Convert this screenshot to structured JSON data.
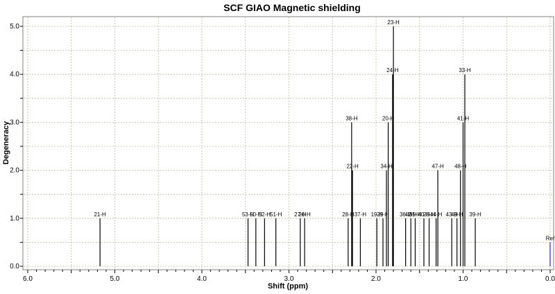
{
  "chart_data": {
    "type": "bar",
    "title": "SCF GIAO Magnetic shielding",
    "xlabel": "Shift (ppm)",
    "ylabel": "Degeneracy",
    "xlim": [
      6.0,
      0.0
    ],
    "ylim": [
      0.0,
      5.2
    ],
    "x_reversed": true,
    "grid": true,
    "xticks": [
      6.0,
      5.0,
      4.0,
      3.0,
      2.0,
      1.0,
      0.0
    ],
    "xtick_labels": [
      "6.0",
      "5.0",
      "4.0",
      "3.0",
      "2.0",
      "1.0",
      "0.0"
    ],
    "yticks": [
      0.0,
      1.0,
      2.0,
      3.0,
      4.0,
      5.0
    ],
    "ytick_labels": [
      "0.0",
      "1.0",
      "2.0",
      "3.0",
      "4.0",
      "5.0"
    ],
    "peaks": [
      {
        "label": "21-H",
        "x": 5.17,
        "y": 1
      },
      {
        "label": "53-H",
        "x": 3.47,
        "y": 1
      },
      {
        "label": "50-H",
        "x": 3.38,
        "y": 1
      },
      {
        "label": "52-H",
        "x": 3.28,
        "y": 1
      },
      {
        "label": "51-H",
        "x": 3.15,
        "y": 1
      },
      {
        "label": "27-H",
        "x": 2.87,
        "y": 1
      },
      {
        "label": "26-H",
        "x": 2.82,
        "y": 1
      },
      {
        "label": "28-H",
        "x": 2.32,
        "y": 1
      },
      {
        "label": "38-H",
        "x": 2.28,
        "y": 3
      },
      {
        "label": "22-H",
        "x": 2.27,
        "y": 2
      },
      {
        "label": "37-H",
        "x": 2.18,
        "y": 1
      },
      {
        "label": "19-H",
        "x": 1.99,
        "y": 1
      },
      {
        "label": "29-H",
        "x": 1.92,
        "y": 1
      },
      {
        "label": "34-H",
        "x": 1.88,
        "y": 2
      },
      {
        "label": "20-H",
        "x": 1.86,
        "y": 3
      },
      {
        "label": "24-H",
        "x": 1.81,
        "y": 4
      },
      {
        "label": "23-H",
        "x": 1.8,
        "y": 5
      },
      {
        "label": "36-H",
        "x": 1.66,
        "y": 1
      },
      {
        "label": "42-H",
        "x": 1.6,
        "y": 1
      },
      {
        "label": "35-H",
        "x": 1.55,
        "y": 1
      },
      {
        "label": "40-H",
        "x": 1.45,
        "y": 1
      },
      {
        "label": "26-H",
        "x": 1.39,
        "y": 1
      },
      {
        "label": "44-H",
        "x": 1.31,
        "y": 1
      },
      {
        "label": "47-H",
        "x": 1.29,
        "y": 2
      },
      {
        "label": "43-H",
        "x": 1.13,
        "y": 1
      },
      {
        "label": "49-H",
        "x": 1.07,
        "y": 1
      },
      {
        "label": "48-H",
        "x": 1.03,
        "y": 2
      },
      {
        "label": "41-H",
        "x": 1.0,
        "y": 3
      },
      {
        "label": "33-H",
        "x": 0.98,
        "y": 4
      },
      {
        "label": "39-H",
        "x": 0.86,
        "y": 1
      }
    ],
    "reference": {
      "label": "Ref",
      "x": 0.0,
      "y": 0.5
    }
  }
}
